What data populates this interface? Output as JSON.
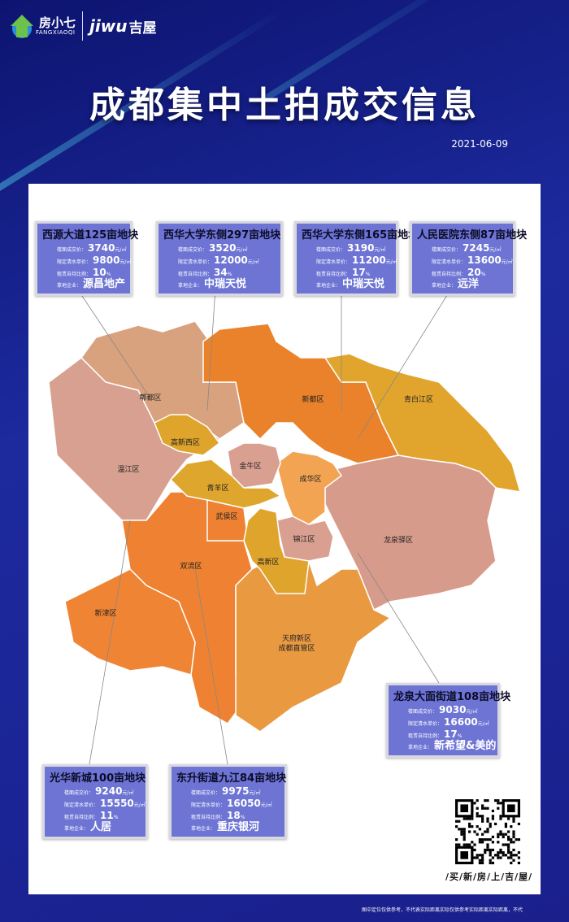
{
  "header": {
    "logo1_name": "房小七",
    "logo1_sub": "FANGXIAOQI",
    "logo2_name": "jiwu",
    "logo2_cn": "吉屋",
    "title": "成都集中土拍成交信息",
    "date": "2021-06-09"
  },
  "labels": {
    "floor_price": "楼面成交价：",
    "fixed_price": "限定清水单价：",
    "rental_ratio": "租赁自持比例：",
    "buyer": "拿地企业：",
    "price_unit": "元/㎡",
    "percent_unit": "%"
  },
  "parcels": [
    {
      "title": "西源大道125亩地块",
      "floor_price": "3740",
      "fixed_price": "9800",
      "rental_ratio": "10",
      "buyer": "源昌地产"
    },
    {
      "title": "西华大学东侧297亩地块",
      "floor_price": "3520",
      "fixed_price": "12000",
      "rental_ratio": "34",
      "buyer": "中瑞天悦"
    },
    {
      "title": "西华大学东侧165亩地块",
      "floor_price": "3190",
      "fixed_price": "11200",
      "rental_ratio": "17",
      "buyer": "中瑞天悦"
    },
    {
      "title": "人民医院东侧87亩地块",
      "floor_price": "7245",
      "fixed_price": "13600",
      "rental_ratio": "20",
      "buyer": "远洋"
    },
    {
      "title": "龙泉大面街道108亩地块",
      "floor_price": "9030",
      "fixed_price": "16600",
      "rental_ratio": "17",
      "buyer": "新希望&美的"
    },
    {
      "title": "光华新城100亩地块",
      "floor_price": "9240",
      "fixed_price": "15550",
      "rental_ratio": "11",
      "buyer": "人居"
    },
    {
      "title": "东升街道九江84亩地块",
      "floor_price": "9975",
      "fixed_price": "16050",
      "rental_ratio": "18",
      "buyer": "重庆银河"
    }
  ],
  "districts": [
    {
      "name": "郫都区",
      "color": "#d9a27f"
    },
    {
      "name": "温江区",
      "color": "#d8a090"
    },
    {
      "name": "新都区",
      "color": "#e9822b"
    },
    {
      "name": "青白江区",
      "color": "#e1a52e"
    },
    {
      "name": "龙泉驿区",
      "color": "#d79b8c"
    },
    {
      "name": "双流区",
      "color": "#ee8232"
    },
    {
      "name": "新津区",
      "color": "#ef8434"
    },
    {
      "name": "天府新区\n成都直管区",
      "color": "#e99a41"
    },
    {
      "name": "成华区",
      "color": "#f2a453"
    },
    {
      "name": "金牛区",
      "color": "#d9a091"
    },
    {
      "name": "高新西区",
      "color": "#dfa42c"
    },
    {
      "name": "青羊区",
      "color": "#dea62d"
    },
    {
      "name": "武侯区",
      "color": "#ee8232"
    },
    {
      "name": "锦江区",
      "color": "#d9a091"
    },
    {
      "name": "高新区",
      "color": "#dfa42c"
    }
  ],
  "qr": {
    "slogan": "/买/新/房/上/吉/屋/"
  },
  "footer": {
    "disclaimer": "图中定位仅供参考，不代表实际距离实际仅供参考实际距离实际距离，不代"
  },
  "colors": {
    "background": "#1a1f8c",
    "box": "#6d74d4",
    "card": "#ffffff"
  }
}
